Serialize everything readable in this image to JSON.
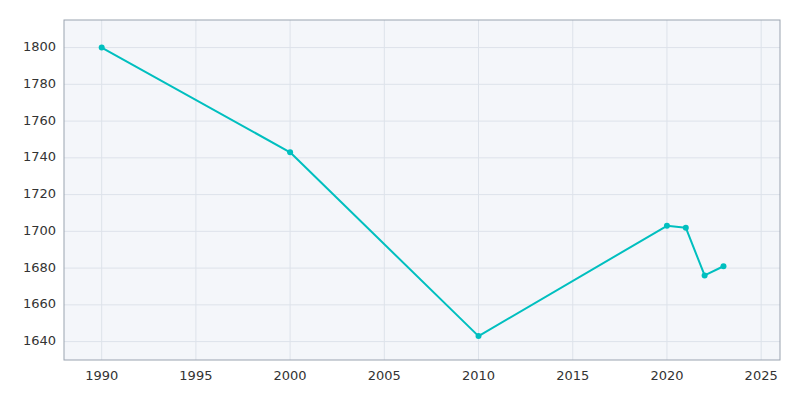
{
  "chart_data": {
    "type": "line",
    "x": [
      1990,
      2000,
      2010,
      2020,
      2021,
      2022,
      2023
    ],
    "values": [
      1800,
      1743,
      1643,
      1703,
      1702,
      1676,
      1681
    ],
    "color": "#00BFBF",
    "xlim": [
      1988,
      2026
    ],
    "ylim": [
      1630,
      1815
    ],
    "xticks": [
      1990,
      1995,
      2000,
      2005,
      2010,
      2015,
      2020,
      2025
    ],
    "yticks": [
      1640,
      1660,
      1680,
      1700,
      1720,
      1740,
      1760,
      1780,
      1800
    ],
    "grid": true
  }
}
